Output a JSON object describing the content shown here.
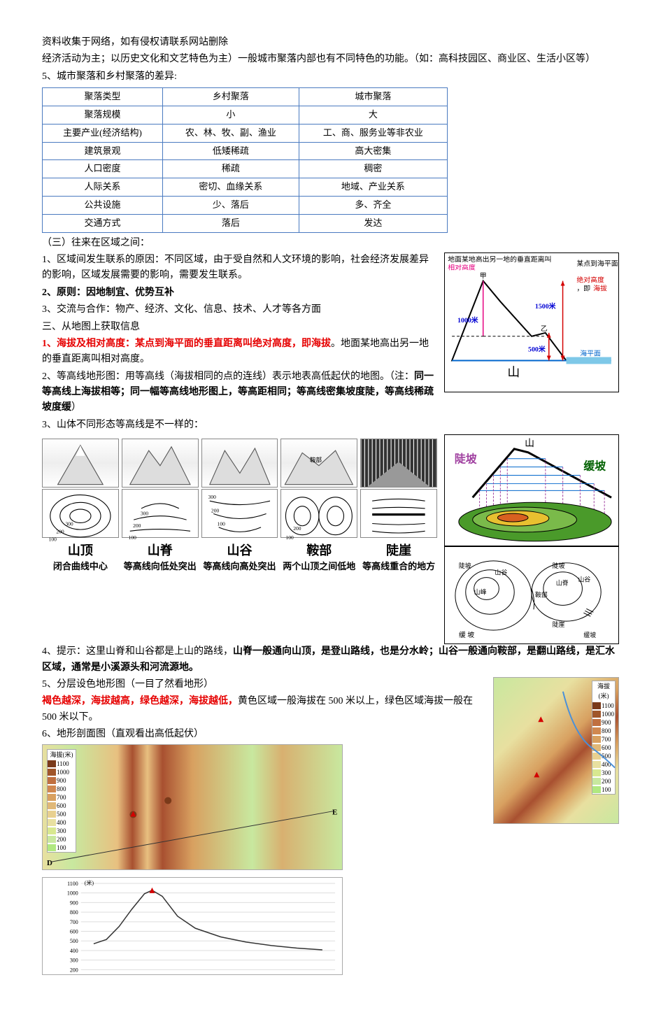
{
  "header": {
    "disclaimer": "资料收集于网络，如有侵权请联系网站删除",
    "intro_line1": "经济活动为主；以历史文化和文艺特色为主）一般城市聚落内部也有不同特色的功能。（如：高科技园区、商业区、生活小区等）",
    "item5_title": "5、城市聚落和乡村聚落的差异:"
  },
  "diff_table": {
    "rows": [
      [
        "聚落类型",
        "乡村聚落",
        "城市聚落"
      ],
      [
        "聚落规模",
        "小",
        "大"
      ],
      [
        "主要产业(经济结构)",
        "农、林、牧、副、渔业",
        "工、商、服务业等非农业"
      ],
      [
        "建筑景观",
        "低矮稀疏",
        "高大密集"
      ],
      [
        "人口密度",
        "稀疏",
        "稠密"
      ],
      [
        "人际关系",
        "密切、血缘关系",
        "地域、产业关系"
      ],
      [
        "公共设施",
        "少、落后",
        "多、齐全"
      ],
      [
        "交通方式",
        "落后",
        "发达"
      ]
    ],
    "border_color": "#4a7ac0"
  },
  "section3": {
    "title": "（三）往来在区域之间：",
    "p1": "1、区域间发生联系的原因：不同区域，由于受自然和人文环境的影响，社会经济发展差异的影响，区域发展需要的影响，需要发生联系。",
    "p2": "2、原则：因地制宜、优势互补",
    "p3": "3、交流与合作：物产、经济、文化、信息、技术、人才等各方面"
  },
  "section_map": {
    "title": "三、从地图上获取信息",
    "p1_a": "1、海拔及相对高度：某点到海平面的垂直距离叫绝对高度，即海拔",
    "p1_b": "。地面某地高出另一地的垂直距离叫相对高度。",
    "p2": "2、等高线地形图：用等高线（海拔相同的点的连线）表示地表高低起伏的地图。（注：",
    "p2_bold": "同一等高线上海拔相等；同一幅等高线地形图上，等高距相同；等高线密集坡度陡，等高线稀疏坡度缓",
    "p2_end": "）",
    "p3": "3、山体不同形态等高线是不一样的：",
    "p4_a": "4、提示：这里山脊和山谷都是上山的路线，",
    "p4_b": "山脊一般通向山顶，是登山路线，也是分水岭；山谷一般通向鞍部，是翻山路线，是汇水区域，通常是小溪源头和河流源地。",
    "p5": "5、分层设色地形图（一目了然看地形）",
    "p5_detail_a": "褐色越深，海拔越高，绿色越深，海拔越低，",
    "p5_detail_b": "黄色区域一般海拔在 500 米以上，绿色区域海拔一般在 500 米以下。",
    "p6": "6、地形剖面图（直观看出高低起伏）"
  },
  "elevation_diagram": {
    "label_relative": "地面某地高出另一地的垂直距离叫",
    "label_relative_color": "相对高度",
    "label_absolute": "某点到海平面的垂直距离叫",
    "label_absolute_color1": "绝对高度",
    "label_absolute_mid": "，即",
    "label_absolute_color2": "海拔",
    "peak_jia": "甲",
    "peak_yi": "乙",
    "sea_level": "海平面",
    "mountain": "山",
    "h1000": "1000米",
    "h1500": "1500米",
    "h500": "500米",
    "colors": {
      "relative": "#e60080",
      "absolute": "#d40000",
      "sea_level": "#0066cc",
      "height_text": "#0000d4"
    }
  },
  "slope_diagram": {
    "title": "山",
    "steep": "陡坡",
    "gentle": "缓坡",
    "colors": {
      "steep": "#a040a0",
      "gentle": "#006000",
      "hill": "#4a9a2a"
    }
  },
  "contour_sketch": {
    "labels": [
      "陡坡",
      "山谷",
      "山峰",
      "山脊",
      "鞍部",
      "山谷",
      "缓坡",
      "陡崖",
      "缓 坡"
    ]
  },
  "landforms": [
    {
      "name": "山顶",
      "desc": "闭合曲线中心",
      "img_label": "山顶",
      "contour_vals": [
        "100",
        "200",
        "300"
      ]
    },
    {
      "name": "山脊",
      "desc": "等高线向低处突出",
      "img_label": "",
      "contour_vals": [
        "100",
        "200",
        "300"
      ]
    },
    {
      "name": "山谷",
      "desc": "等高线向高处突出",
      "img_label": "",
      "contour_vals": [
        "100",
        "200",
        "300"
      ]
    },
    {
      "name": "鞍部",
      "desc": "两个山顶之间低地",
      "img_label": "鞍部",
      "contour_vals": [
        "100",
        "200"
      ]
    },
    {
      "name": "陡崖",
      "desc": "等高线重合的地方",
      "img_label": "",
      "contour_vals": []
    }
  ],
  "layered_maps": {
    "legend_title": "海拔(米)",
    "legend": [
      {
        "v": "1100",
        "c": "#7a3a1a"
      },
      {
        "v": "1000",
        "c": "#a0562a"
      },
      {
        "v": "900",
        "c": "#c07040"
      },
      {
        "v": "800",
        "c": "#d08850"
      },
      {
        "v": "700",
        "c": "#d8a060"
      },
      {
        "v": "600",
        "c": "#e0b878"
      },
      {
        "v": "500",
        "c": "#e8d090"
      },
      {
        "v": "400",
        "c": "#e8e0a0"
      },
      {
        "v": "300",
        "c": "#d8e890"
      },
      {
        "v": "200",
        "c": "#c8e89f"
      },
      {
        "v": "100",
        "c": "#b0e880"
      }
    ]
  },
  "profile_chart": {
    "y_label": "(米)",
    "y_ticks": [
      "1100",
      "1000",
      "900",
      "800",
      "700",
      "600",
      "500",
      "400",
      "300",
      "200"
    ],
    "markers": [
      "D",
      "E"
    ],
    "peak_x": 0.28,
    "curve": [
      [
        0.05,
        0.3
      ],
      [
        0.1,
        0.35
      ],
      [
        0.15,
        0.5
      ],
      [
        0.2,
        0.7
      ],
      [
        0.25,
        0.88
      ],
      [
        0.28,
        0.92
      ],
      [
        0.32,
        0.85
      ],
      [
        0.38,
        0.62
      ],
      [
        0.45,
        0.48
      ],
      [
        0.55,
        0.38
      ],
      [
        0.65,
        0.32
      ],
      [
        0.75,
        0.28
      ],
      [
        0.85,
        0.25
      ],
      [
        0.95,
        0.23
      ]
    ],
    "grid_color": "#dddddd",
    "line_color": "#333333"
  }
}
